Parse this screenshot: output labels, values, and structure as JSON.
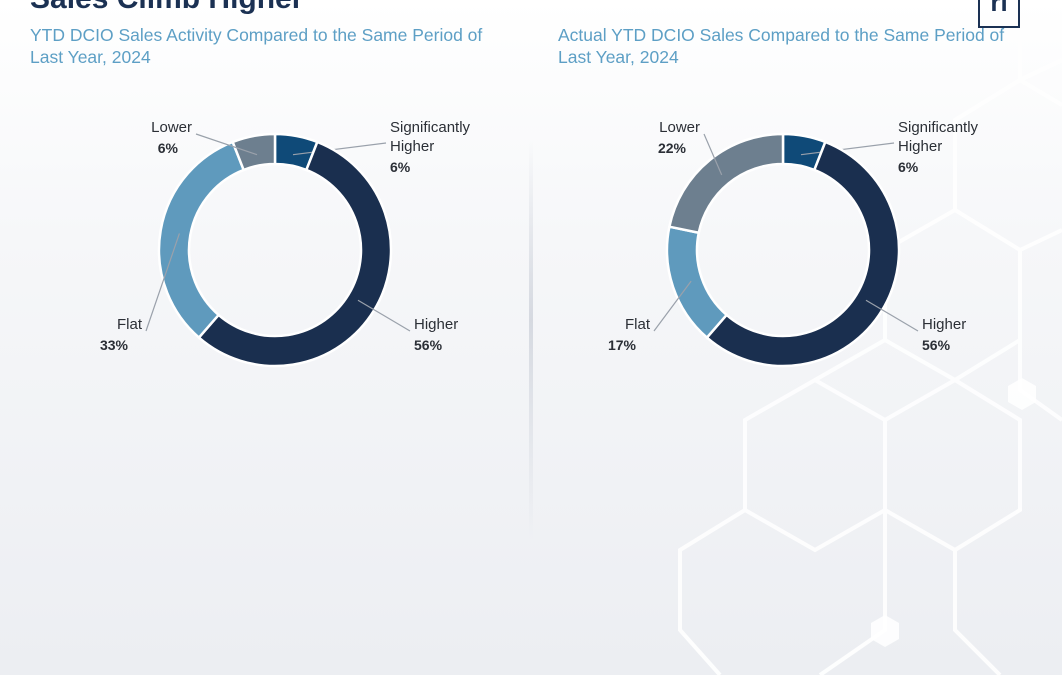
{
  "page": {
    "title": "Sales Climb Higher",
    "logo_text": "ri"
  },
  "chart_data": [
    {
      "type": "pie",
      "title": "YTD DCIO Sales Activity Compared to the Same Period of Last Year, 2024",
      "categories": [
        "Significantly Higher",
        "Higher",
        "Flat",
        "Lower"
      ],
      "values": [
        6,
        56,
        33,
        6
      ],
      "value_labels": [
        "6%",
        "56%",
        "33%",
        "6%"
      ],
      "colors": [
        "#0f4a78",
        "#1a2f4f",
        "#5f9abd",
        "#6d7f8f"
      ],
      "label_lines": [
        [
          "Significantly",
          "Higher"
        ],
        [
          "Higher"
        ],
        [
          "Flat"
        ],
        [
          "Lower"
        ]
      ],
      "donut": true
    },
    {
      "type": "pie",
      "title": "Actual YTD DCIO Sales Compared to the Same Period of Last Year, 2024",
      "categories": [
        "Significantly Higher",
        "Higher",
        "Flat",
        "Lower"
      ],
      "values": [
        6,
        56,
        17,
        22
      ],
      "value_labels": [
        "6%",
        "56%",
        "17%",
        "22%"
      ],
      "colors": [
        "#0f4a78",
        "#1a2f4f",
        "#5f9abd",
        "#6d7f8f"
      ],
      "label_lines": [
        [
          "Significantly",
          "Higher"
        ],
        [
          "Higher"
        ],
        [
          "Flat"
        ],
        [
          "Lower"
        ]
      ],
      "donut": true
    }
  ]
}
